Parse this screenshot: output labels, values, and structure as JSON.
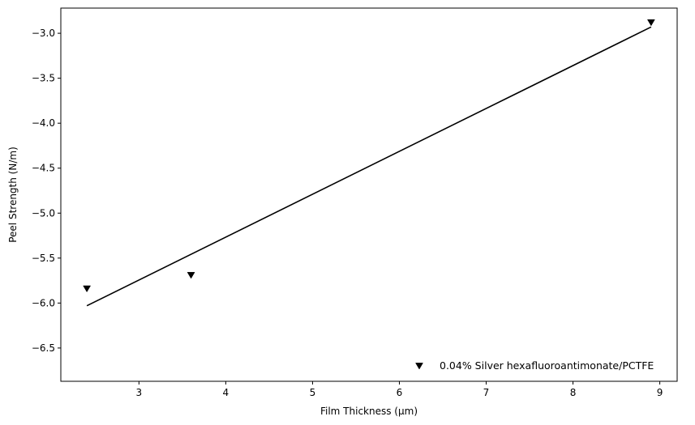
{
  "chart_data": {
    "type": "scatter",
    "title": "",
    "xlabel": "Film Thickness (μm)",
    "ylabel": "Peel Strength (N/m)",
    "xlim": [
      2.1,
      9.2
    ],
    "ylim": [
      -6.87,
      -2.72
    ],
    "xticks": [
      3,
      4,
      5,
      6,
      7,
      8,
      9
    ],
    "yticks": [
      -3.0,
      -3.5,
      -4.0,
      -4.5,
      -5.0,
      -5.5,
      -6.0,
      -6.5
    ],
    "xtick_labels": [
      "3",
      "4",
      "5",
      "6",
      "7",
      "8",
      "9"
    ],
    "ytick_labels": [
      "−3.0",
      "−3.5",
      "−4.0",
      "−4.5",
      "−5.0",
      "−5.5",
      "−6.0",
      "−6.5"
    ],
    "grid": false,
    "legend_position": "lower-right",
    "series": [
      {
        "name": "0.04% Silver hexafluoroantimonate/PCTFE",
        "kind": "scatter",
        "marker": "triangle-down",
        "color": "#000000",
        "x": [
          2.4,
          3.6,
          8.9
        ],
        "y": [
          -5.84,
          -5.69,
          -2.88
        ]
      },
      {
        "kind": "line",
        "color": "#000000",
        "x": [
          2.4,
          8.9
        ],
        "y": [
          -6.03,
          -2.93
        ]
      }
    ]
  }
}
